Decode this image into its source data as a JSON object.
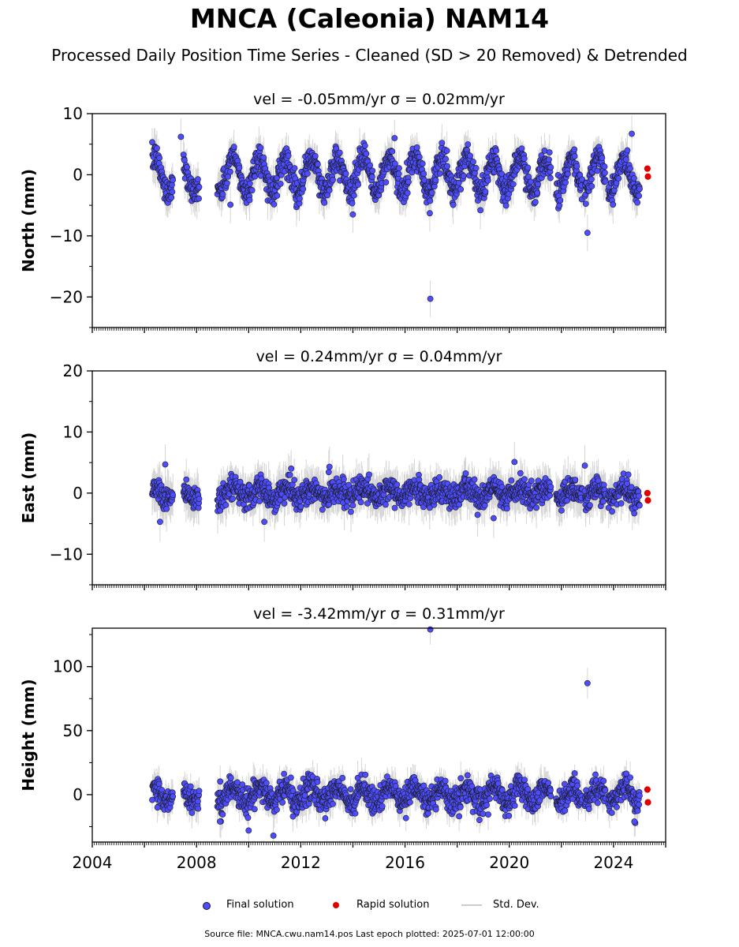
{
  "title": "MNCA (Caleonia) NAM14",
  "subtitle": "Processed Daily Position Time Series - Cleaned (SD > 20 Removed) & Detrended",
  "legend": {
    "final_label": "Final solution",
    "rapid_label": "Rapid solution",
    "std_label": "Std. Dev."
  },
  "footer": "Source file: MNCA.cwu.nam14.pos  Last epoch plotted: 2025-07-01 12:00:00",
  "colors": {
    "final": "#4d4dff",
    "rapid": "#e00000",
    "std": "#b4b4b4",
    "marker_edge": "#1a1a1a"
  },
  "chart_data": [
    {
      "type": "scatter",
      "panel": "north",
      "title": "vel = -0.05mm/yr   σ = 0.02mm/yr",
      "ylabel": "North (mm)",
      "xlabel": "",
      "xlim": [
        2004,
        2026
      ],
      "ylim": [
        -25,
        10
      ],
      "yticks": [
        -20,
        -10,
        0,
        10
      ],
      "ytick_labels": [
        "−20",
        "−10",
        "0",
        "10"
      ],
      "xticks": [
        2004,
        2008,
        2012,
        2016,
        2020,
        2024
      ],
      "grid": false,
      "data_segments": [
        [
          2006.3,
          2007.1
        ],
        [
          2007.5,
          2008.1
        ],
        [
          2008.8,
          2021.6
        ],
        [
          2021.8,
          2022.8
        ],
        [
          2022.9,
          2023.7
        ],
        [
          2023.8,
          2025.0
        ]
      ],
      "seasonal_amplitude": 2.8,
      "noise_sd": 1.1,
      "typical_error": 2.0,
      "outliers": [
        [
          2016.97,
          -20.3
        ],
        [
          2023.0,
          -9.5
        ],
        [
          2024.7,
          6.7
        ],
        [
          2007.4,
          6.2
        ],
        [
          2016.95,
          -6.3
        ],
        [
          2014.0,
          -6.5
        ],
        [
          2015.6,
          6.0
        ],
        [
          2009.3,
          -4.9
        ]
      ],
      "rapid": [
        [
          2025.3,
          1.0
        ],
        [
          2025.32,
          -0.3
        ]
      ]
    },
    {
      "type": "scatter",
      "panel": "east",
      "title": "vel = 0.24mm/yr   σ = 0.04mm/yr",
      "ylabel": "East (mm)",
      "xlabel": "",
      "xlim": [
        2004,
        2026
      ],
      "ylim": [
        -15,
        20
      ],
      "yticks": [
        -10,
        0,
        10,
        20
      ],
      "ytick_labels": [
        "−10",
        "0",
        "10",
        "20"
      ],
      "xticks": [
        2004,
        2008,
        2012,
        2016,
        2020,
        2024
      ],
      "grid": false,
      "data_segments": [
        [
          2006.3,
          2007.1
        ],
        [
          2007.5,
          2008.1
        ],
        [
          2008.8,
          2021.6
        ],
        [
          2021.8,
          2022.8
        ],
        [
          2022.9,
          2023.7
        ],
        [
          2023.8,
          2025.0
        ]
      ],
      "seasonal_amplitude": 0.8,
      "noise_sd": 1.0,
      "typical_error": 2.2,
      "outliers": [
        [
          2006.6,
          -4.7
        ],
        [
          2010.6,
          -4.7
        ],
        [
          2019.4,
          -4.1
        ],
        [
          2020.2,
          5.1
        ],
        [
          2006.8,
          4.7
        ],
        [
          2013.1,
          4.3
        ],
        [
          2022.9,
          4.5
        ]
      ],
      "rapid": [
        [
          2025.3,
          0.0
        ],
        [
          2025.32,
          -1.2
        ]
      ]
    },
    {
      "type": "scatter",
      "panel": "height",
      "title": "vel = -3.42mm/yr   σ = 0.31mm/yr",
      "ylabel": "Height (mm)",
      "xlabel": "",
      "xlim": [
        2004,
        2026
      ],
      "ylim": [
        -37,
        130
      ],
      "yticks": [
        0,
        50,
        100
      ],
      "ytick_labels": [
        "0",
        "50",
        "100"
      ],
      "xticks": [
        2004,
        2008,
        2012,
        2016,
        2020,
        2024
      ],
      "xtick_labels": [
        "2004",
        "2008",
        "2012",
        "2016",
        "2020",
        "2024"
      ],
      "grid": false,
      "data_segments": [
        [
          2006.3,
          2007.1
        ],
        [
          2007.5,
          2008.1
        ],
        [
          2008.8,
          2021.6
        ],
        [
          2021.8,
          2022.8
        ],
        [
          2022.9,
          2023.7
        ],
        [
          2023.8,
          2025.0
        ]
      ],
      "seasonal_amplitude": 6.0,
      "noise_sd": 5.0,
      "typical_error": 8.0,
      "outliers": [
        [
          2016.97,
          129.0
        ],
        [
          2023.0,
          87.0
        ],
        [
          2010.95,
          -32.0
        ],
        [
          2010.0,
          -28.0
        ],
        [
          2008.9,
          -21.0
        ],
        [
          2024.8,
          -21.0
        ],
        [
          2011.7,
          -17.0
        ],
        [
          2006.5,
          -10.0
        ]
      ],
      "rapid": [
        [
          2025.3,
          4.0
        ],
        [
          2025.32,
          -6.0
        ]
      ]
    }
  ]
}
